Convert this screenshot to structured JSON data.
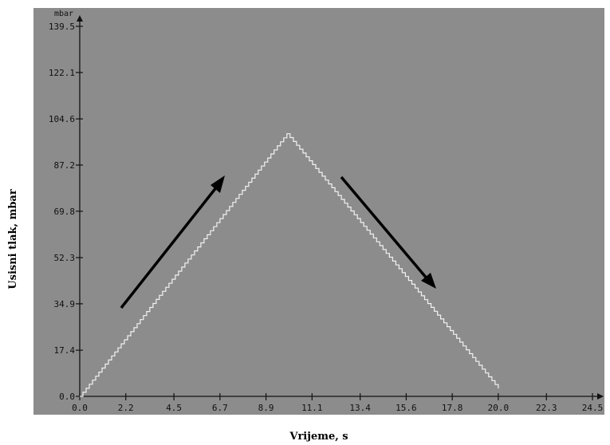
{
  "chart_data": {
    "type": "line",
    "xlabel": "Vrijeme, s",
    "ylabel": "Usisni tlak, mbar",
    "y_unit": "mbar",
    "xlim": [
      0.0,
      24.5
    ],
    "ylim": [
      0.0,
      139.5
    ],
    "x_ticks": [
      "0.0",
      "2.2",
      "4.5",
      "6.7",
      "8.9",
      "11.1",
      "13.4",
      "15.6",
      "17.8",
      "20.0",
      "22.3",
      "24.5"
    ],
    "y_ticks": [
      "0.0",
      "17.4",
      "34.9",
      "52.3",
      "69.8",
      "87.2",
      "104.6",
      "122.1",
      "139.5"
    ],
    "series": [
      {
        "x": [
          0.0,
          9.9,
          20.0
        ],
        "y": [
          0.0,
          99.0,
          3.0
        ]
      }
    ],
    "grid": false,
    "colors": {
      "plot_bg": "#8c8c8c",
      "line": "#f2f2f2",
      "arrow": "#000000",
      "axis": "#111111"
    }
  }
}
